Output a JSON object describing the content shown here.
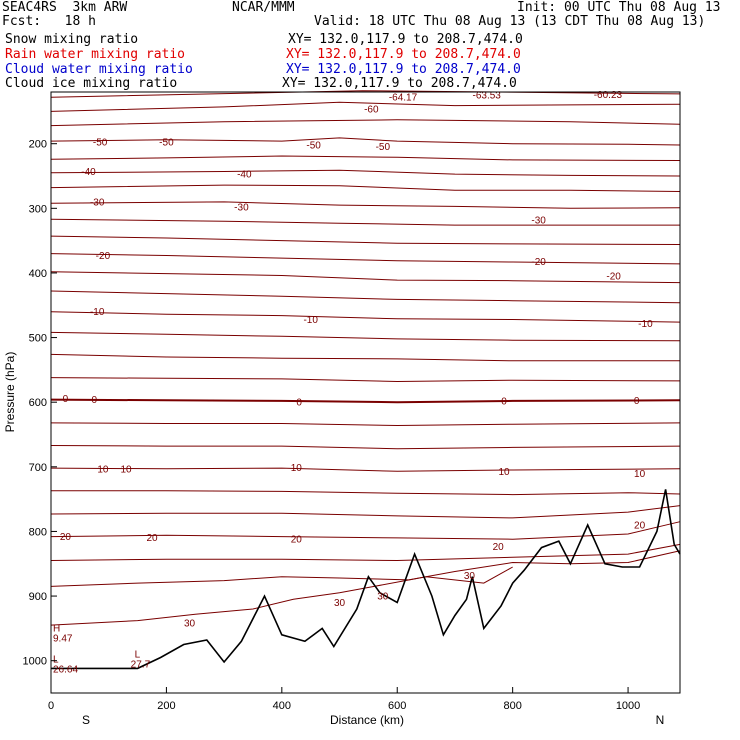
{
  "header": {
    "model": "SEAC4RS  3km ARW",
    "org": "NCAR/MMM",
    "init": "Init: 00 UTC Thu 08 Aug 13",
    "fcst": "Fcst:   18 h",
    "valid": "Valid: 18 UTC Thu 08 Aug 13 (13 CDT Thu 08 Aug 13)",
    "fields": [
      {
        "name": "Snow mixing ratio",
        "xy": "XY= 132.0,117.9 to 208.7,474.0",
        "color": "#000000"
      },
      {
        "name": "Rain water mixing ratio",
        "xy": "XY= 132.0,117.9 to 208.7,474.0",
        "color": "#e00000"
      },
      {
        "name": "Cloud water mixing ratio",
        "xy": "XY= 132.0,117.9 to 208.7,474.0",
        "color": "#0000cc"
      },
      {
        "name": "Cloud ice mixing ratio",
        "xy": "XY= 132.0,117.9 to 208.7,474.0",
        "color": "#000000"
      }
    ]
  },
  "chart_data": {
    "type": "line",
    "xlabel": "Distance (km)",
    "ylabel": "Pressure (hPa)",
    "xlim": [
      0,
      1090
    ],
    "ylim": [
      1050,
      120
    ],
    "x_ticks": [
      "0",
      "200",
      "400",
      "600",
      "800",
      "1000"
    ],
    "y_ticks": [
      "200",
      "300",
      "400",
      "500",
      "600",
      "700",
      "800",
      "900",
      "1000"
    ],
    "x_end_labels": {
      "left": "S",
      "right": "N"
    },
    "contour_color": "#7a0000",
    "series": [
      {
        "name": "",
        "values": [
          [
            0,
            128
          ],
          [
            540,
            118
          ],
          [
            1090,
            123
          ]
        ]
      },
      {
        "name": "",
        "values": [
          [
            0,
            150
          ],
          [
            300,
            143
          ],
          [
            500,
            136
          ],
          [
            700,
            141
          ],
          [
            900,
            140
          ],
          [
            1090,
            139
          ]
        ]
      },
      {
        "name": "",
        "values": [
          [
            0,
            172
          ],
          [
            300,
            166
          ],
          [
            600,
            163
          ],
          [
            900,
            166
          ],
          [
            1090,
            170
          ]
        ]
      },
      {
        "name": "",
        "values": [
          [
            0,
            196
          ],
          [
            200,
            194
          ],
          [
            400,
            196
          ],
          [
            500,
            191
          ],
          [
            600,
            196
          ],
          [
            800,
            200
          ],
          [
            1000,
            201
          ],
          [
            1090,
            202
          ]
        ]
      },
      {
        "name": "",
        "values": [
          [
            0,
            224
          ],
          [
            200,
            222
          ],
          [
            400,
            219
          ],
          [
            600,
            221
          ],
          [
            800,
            225
          ],
          [
            1090,
            226
          ]
        ]
      },
      {
        "name": "",
        "values": [
          [
            0,
            245
          ],
          [
            300,
            243
          ],
          [
            500,
            241
          ],
          [
            700,
            247
          ],
          [
            900,
            249
          ],
          [
            1090,
            250
          ]
        ]
      },
      {
        "name": "",
        "values": [
          [
            0,
            268
          ],
          [
            300,
            264
          ],
          [
            500,
            265
          ],
          [
            700,
            272
          ],
          [
            900,
            272
          ],
          [
            1090,
            274
          ]
        ]
      },
      {
        "name": "",
        "values": [
          [
            0,
            292
          ],
          [
            300,
            290
          ],
          [
            500,
            295
          ],
          [
            700,
            297
          ],
          [
            900,
            300
          ],
          [
            1090,
            299
          ]
        ]
      },
      {
        "name": "",
        "values": [
          [
            0,
            317
          ],
          [
            300,
            320
          ],
          [
            500,
            323
          ],
          [
            700,
            326
          ],
          [
            900,
            326
          ],
          [
            1090,
            326
          ]
        ]
      },
      {
        "name": "",
        "values": [
          [
            0,
            343
          ],
          [
            200,
            346
          ],
          [
            400,
            350
          ],
          [
            600,
            354
          ],
          [
            800,
            355
          ],
          [
            1090,
            356
          ]
        ]
      },
      {
        "name": "",
        "values": [
          [
            0,
            370
          ],
          [
            200,
            373
          ],
          [
            400,
            377
          ],
          [
            600,
            381
          ],
          [
            800,
            383
          ],
          [
            1090,
            386
          ]
        ]
      },
      {
        "name": "",
        "values": [
          [
            0,
            398
          ],
          [
            200,
            401
          ],
          [
            400,
            404
          ],
          [
            600,
            411
          ],
          [
            800,
            412
          ],
          [
            1090,
            415
          ]
        ]
      },
      {
        "name": "",
        "values": [
          [
            0,
            428
          ],
          [
            200,
            432
          ],
          [
            400,
            436
          ],
          [
            600,
            441
          ],
          [
            800,
            443
          ],
          [
            1090,
            446
          ]
        ]
      },
      {
        "name": "",
        "values": [
          [
            0,
            460
          ],
          [
            200,
            464
          ],
          [
            400,
            466
          ],
          [
            600,
            471
          ],
          [
            800,
            472
          ],
          [
            1090,
            476
          ]
        ]
      },
      {
        "name": "",
        "values": [
          [
            0,
            492
          ],
          [
            200,
            495
          ],
          [
            400,
            498
          ],
          [
            600,
            502
          ],
          [
            800,
            504
          ],
          [
            1090,
            505
          ]
        ]
      },
      {
        "name": "",
        "values": [
          [
            0,
            526
          ],
          [
            200,
            530
          ],
          [
            400,
            532
          ],
          [
            600,
            533
          ],
          [
            800,
            536
          ],
          [
            1090,
            536
          ]
        ]
      },
      {
        "name": "",
        "values": [
          [
            0,
            562
          ],
          [
            200,
            563
          ],
          [
            400,
            564
          ],
          [
            600,
            568
          ],
          [
            800,
            566
          ],
          [
            1090,
            567
          ]
        ]
      },
      {
        "name": "",
        "values": [
          [
            0,
            596
          ],
          [
            200,
            597
          ],
          [
            400,
            598
          ],
          [
            600,
            600
          ],
          [
            800,
            598
          ],
          [
            1090,
            597
          ]
        ]
      },
      {
        "name": "",
        "values": [
          [
            0,
            632
          ],
          [
            200,
            633
          ],
          [
            400,
            633
          ],
          [
            600,
            636
          ],
          [
            800,
            634
          ],
          [
            1090,
            632
          ]
        ]
      },
      {
        "name": "",
        "values": [
          [
            0,
            667
          ],
          [
            200,
            668
          ],
          [
            400,
            668
          ],
          [
            600,
            672
          ],
          [
            800,
            670
          ],
          [
            1090,
            668
          ]
        ]
      },
      {
        "name": "",
        "values": [
          [
            0,
            702
          ],
          [
            200,
            703
          ],
          [
            400,
            702
          ],
          [
            600,
            707
          ],
          [
            800,
            705
          ],
          [
            1090,
            703
          ]
        ]
      },
      {
        "name": "",
        "values": [
          [
            0,
            737
          ],
          [
            200,
            737
          ],
          [
            400,
            738
          ],
          [
            600,
            741
          ],
          [
            800,
            743
          ],
          [
            1000,
            740
          ],
          [
            1090,
            742
          ]
        ]
      },
      {
        "name": "",
        "values": [
          [
            0,
            773
          ],
          [
            200,
            772
          ],
          [
            400,
            772
          ],
          [
            600,
            776
          ],
          [
            800,
            779
          ],
          [
            1000,
            770
          ],
          [
            1090,
            760
          ]
        ]
      },
      {
        "name": "",
        "values": [
          [
            0,
            808
          ],
          [
            200,
            806
          ],
          [
            400,
            808
          ],
          [
            600,
            810
          ],
          [
            800,
            812
          ],
          [
            1000,
            804
          ],
          [
            1090,
            785
          ]
        ]
      },
      {
        "name": "",
        "values": [
          [
            0,
            845
          ],
          [
            200,
            843
          ],
          [
            400,
            843
          ],
          [
            600,
            845
          ],
          [
            800,
            840
          ],
          [
            1000,
            835
          ],
          [
            1090,
            820
          ]
        ]
      },
      {
        "name": "",
        "values": [
          [
            0,
            885
          ],
          [
            150,
            880
          ],
          [
            300,
            876
          ],
          [
            400,
            870
          ],
          [
            500,
            872
          ],
          [
            620,
            875
          ],
          [
            700,
            862
          ],
          [
            800,
            848
          ],
          [
            900,
            850
          ],
          [
            1000,
            848
          ],
          [
            1090,
            830
          ]
        ]
      },
      {
        "name": "",
        "values": [
          [
            0,
            945
          ],
          [
            150,
            938
          ],
          [
            250,
            928
          ],
          [
            350,
            920
          ],
          [
            420,
            905
          ],
          [
            500,
            895
          ],
          [
            560,
            885
          ],
          [
            650,
            870
          ],
          [
            750,
            880
          ],
          [
            800,
            855
          ]
        ]
      }
    ],
    "terrain": {
      "name": "",
      "values": [
        [
          0,
          1012
        ],
        [
          150,
          1012
        ],
        [
          190,
          995
        ],
        [
          230,
          975
        ],
        [
          270,
          968
        ],
        [
          300,
          1002
        ],
        [
          330,
          970
        ],
        [
          370,
          900
        ],
        [
          400,
          960
        ],
        [
          440,
          970
        ],
        [
          470,
          950
        ],
        [
          490,
          978
        ],
        [
          530,
          920
        ],
        [
          550,
          870
        ],
        [
          570,
          895
        ],
        [
          600,
          910
        ],
        [
          630,
          835
        ],
        [
          660,
          900
        ],
        [
          680,
          960
        ],
        [
          700,
          930
        ],
        [
          720,
          905
        ],
        [
          730,
          870
        ],
        [
          750,
          950
        ],
        [
          780,
          915
        ],
        [
          800,
          880
        ],
        [
          820,
          860
        ],
        [
          850,
          825
        ],
        [
          880,
          815
        ],
        [
          900,
          850
        ],
        [
          930,
          790
        ],
        [
          960,
          850
        ],
        [
          990,
          855
        ],
        [
          1020,
          855
        ],
        [
          1050,
          800
        ],
        [
          1065,
          735
        ],
        [
          1080,
          820
        ],
        [
          1090,
          835
        ]
      ]
    },
    "contour_labels": [
      "-64.17",
      "-63.53",
      "-60.23",
      "-60",
      "-50",
      "-50",
      "-50",
      "-50",
      "-40",
      "-40",
      "-30",
      "-30",
      "-30",
      "-20",
      "-20",
      "-20",
      "-10",
      "-10",
      "-10",
      "0",
      "0",
      "0",
      "0",
      "0",
      "10",
      "10",
      "10",
      "10",
      "10",
      "20",
      "20",
      "20",
      "20",
      "20",
      "30",
      "30",
      "30",
      "30"
    ],
    "extrema": [
      {
        "type": "H",
        "value": "9.47"
      },
      {
        "type": "L",
        "value": "26.64"
      },
      {
        "type": "L",
        "value": "27.7"
      }
    ]
  }
}
